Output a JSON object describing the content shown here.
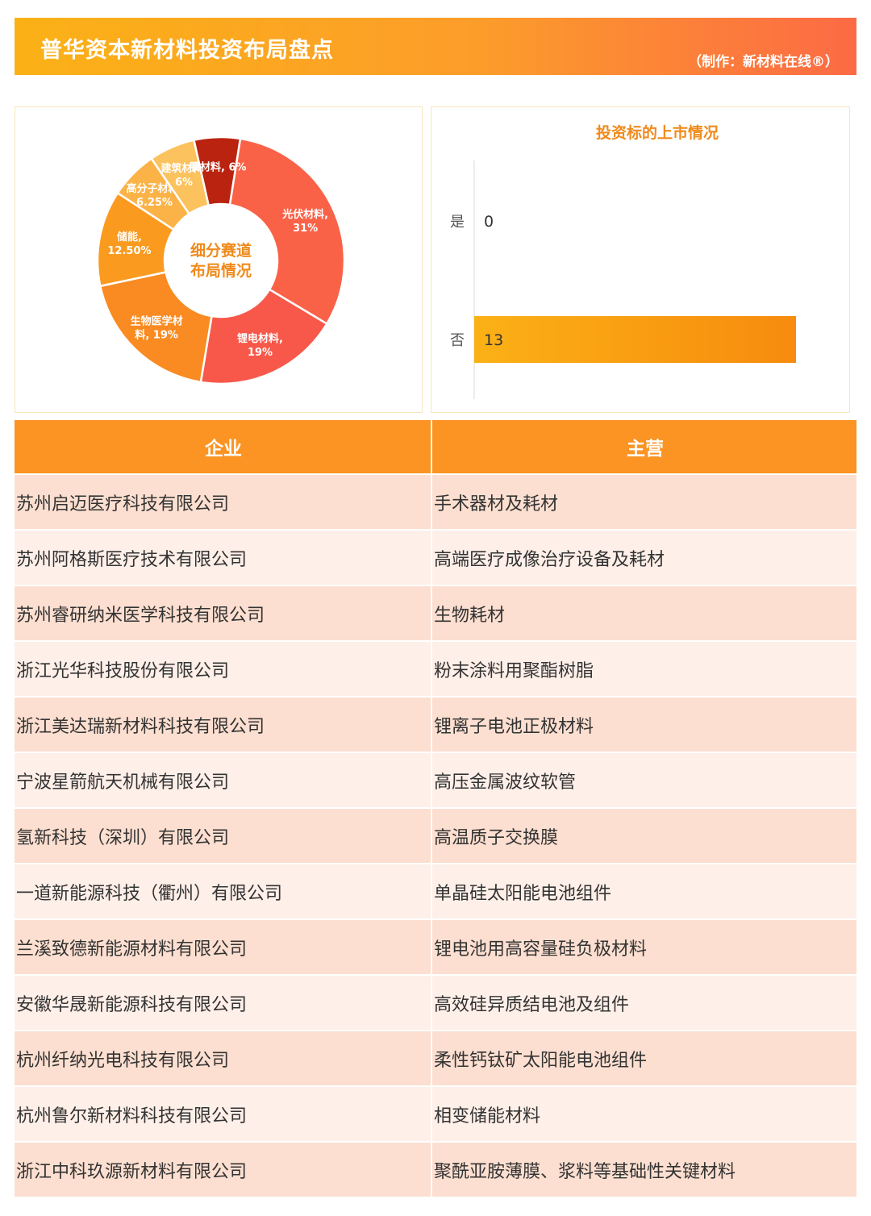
{
  "header": {
    "title": "普华资本新材料投资布局盘点",
    "credit": "（制作：新材料在线®）"
  },
  "colors": {
    "accent": "#fb9422",
    "header_start": "#fbb116",
    "header_end": "#fc6a45"
  },
  "chart_data": [
    {
      "type": "pie",
      "center_label": [
        "细分赛道",
        "布局情况"
      ],
      "slices": [
        {
          "label": [
            "光伏材料,",
            "31%"
          ],
          "value": 31,
          "color": "#fa6248"
        },
        {
          "label": [
            "锂电材料,",
            "19%"
          ],
          "value": 19,
          "color": "#f7584a"
        },
        {
          "label": [
            "生物医学材",
            "料, 19%"
          ],
          "value": 19,
          "color": "#f98b22"
        },
        {
          "label": [
            "储能,",
            "12.50%"
          ],
          "value": 12.5,
          "color": "#fa9a1f"
        },
        {
          "label": [
            "高分子材料,",
            "6.25%"
          ],
          "value": 6.25,
          "color": "#fbb348"
        },
        {
          "label": [
            "建筑材料,",
            "6%"
          ],
          "value": 6,
          "color": "#fcc25d"
        },
        {
          "label": [
            "膜材料, 6%"
          ],
          "value": 6,
          "color": "#b9230f"
        }
      ]
    },
    {
      "type": "bar",
      "orientation": "horizontal",
      "title": "投资标的上市情况",
      "categories": [
        "是",
        "否"
      ],
      "values": [
        0,
        13
      ],
      "value_labels": [
        "0",
        "13"
      ],
      "xlim": [
        0,
        13
      ]
    }
  ],
  "table": {
    "headers": [
      "企业",
      "主营"
    ],
    "rows": [
      [
        "苏州启迈医疗科技有限公司",
        "手术器材及耗材"
      ],
      [
        "苏州阿格斯医疗技术有限公司",
        "高端医疗成像治疗设备及耗材"
      ],
      [
        "苏州睿研纳米医学科技有限公司",
        "生物耗材"
      ],
      [
        "浙江光华科技股份有限公司",
        "粉末涂料用聚酯树脂"
      ],
      [
        "浙江美达瑞新材料科技有限公司",
        "锂离子电池正极材料"
      ],
      [
        "宁波星箭航天机械有限公司",
        "高压金属波纹软管"
      ],
      [
        "氢新科技（深圳）有限公司",
        "高温质子交换膜"
      ],
      [
        "一道新能源科技（衢州）有限公司",
        "单晶硅太阳能电池组件"
      ],
      [
        "兰溪致德新能源材料有限公司",
        "锂电池用高容量硅负极材料"
      ],
      [
        "安徽华晟新能源科技有限公司",
        "高效硅异质结电池及组件"
      ],
      [
        "杭州纤纳光电科技有限公司",
        "柔性钙钛矿太阳能电池组件"
      ],
      [
        "杭州鲁尔新材料科技有限公司",
        "相变储能材料"
      ],
      [
        "浙江中科玖源新材料有限公司",
        "聚酰亚胺薄膜、浆料等基础性关键材料"
      ]
    ]
  }
}
